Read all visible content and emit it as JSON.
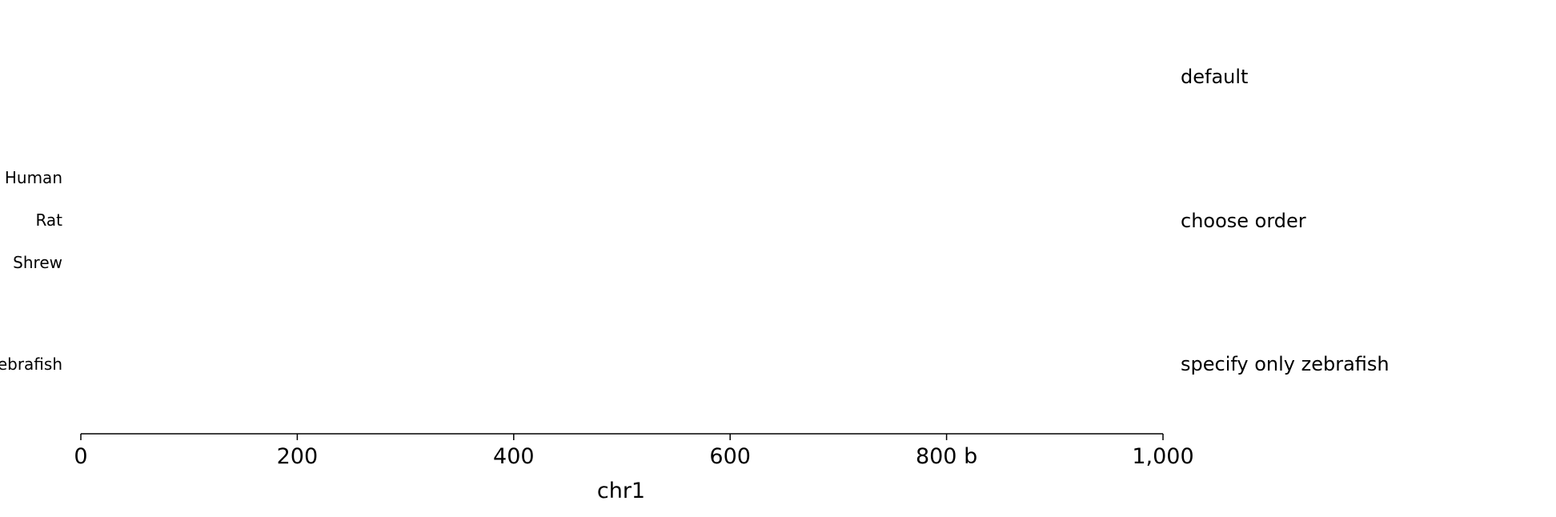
{
  "chart_data": {
    "type": "scatter",
    "xlabel": "chr1",
    "xlim": [
      0,
      1000
    ],
    "x_ticks": [
      {
        "value": 0,
        "label": "0"
      },
      {
        "value": 200,
        "label": "200"
      },
      {
        "value": 400,
        "label": "400"
      },
      {
        "value": 600,
        "label": "600"
      },
      {
        "value": 800,
        "label": "800 b"
      },
      {
        "value": 1000,
        "label": "1,000"
      }
    ],
    "tracks": [
      {
        "title": "default",
        "rows": []
      },
      {
        "title": "choose order",
        "rows": [
          "Human",
          "Rat",
          "Shrew"
        ]
      },
      {
        "title": "specify only zebrafish",
        "rows": [
          "Zebrafish"
        ]
      }
    ],
    "grid": false,
    "colors": {
      "axis": "#000000",
      "text": "#000000",
      "background": "#ffffff"
    }
  }
}
